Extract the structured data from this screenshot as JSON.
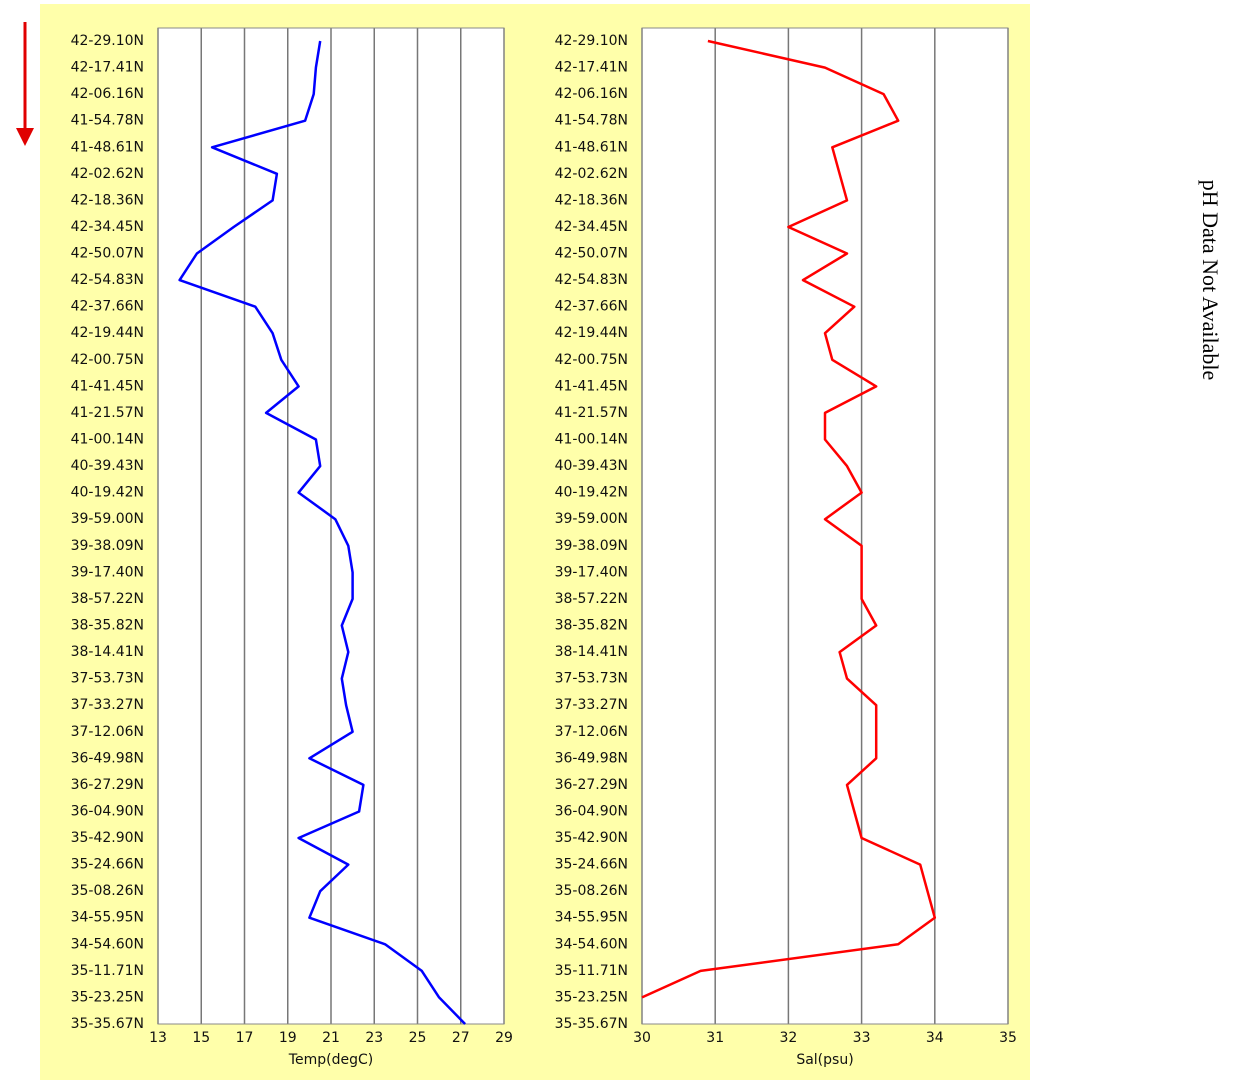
{
  "chart_data": [
    {
      "type": "line",
      "xlabel": "Temp(degC)",
      "categories": [
        "42-29.10N",
        "42-17.41N",
        "42-06.16N",
        "41-54.78N",
        "41-48.61N",
        "42-02.62N",
        "42-18.36N",
        "42-34.45N",
        "42-50.07N",
        "42-54.83N",
        "42-37.66N",
        "42-19.44N",
        "42-00.75N",
        "41-41.45N",
        "41-21.57N",
        "41-00.14N",
        "40-39.43N",
        "40-19.42N",
        "39-59.00N",
        "39-38.09N",
        "39-17.40N",
        "38-57.22N",
        "38-35.82N",
        "38-14.41N",
        "37-53.73N",
        "37-33.27N",
        "37-12.06N",
        "36-49.98N",
        "36-27.29N",
        "36-04.90N",
        "35-42.90N",
        "35-24.66N",
        "35-08.26N",
        "34-55.95N",
        "34-54.60N",
        "35-11.71N",
        "35-23.25N",
        "35-35.67N"
      ],
      "values": [
        20.5,
        20.3,
        20.2,
        19.8,
        15.5,
        18.5,
        18.3,
        16.5,
        14.8,
        14.0,
        17.5,
        18.3,
        18.7,
        19.5,
        18.0,
        20.3,
        20.5,
        19.5,
        21.2,
        21.8,
        22.0,
        22.0,
        21.5,
        21.8,
        21.5,
        21.7,
        22.0,
        20.0,
        22.5,
        22.3,
        19.5,
        21.8,
        20.5,
        20.0,
        23.5,
        25.2,
        26.0,
        27.2
      ],
      "color": "#0000ff",
      "xlim": [
        13,
        29
      ],
      "xticks": [
        13,
        15,
        17,
        19,
        21,
        23,
        25,
        27,
        29
      ],
      "grid": true
    },
    {
      "type": "line",
      "xlabel": "Sal(psu)",
      "categories": [
        "42-29.10N",
        "42-17.41N",
        "42-06.16N",
        "41-54.78N",
        "41-48.61N",
        "42-02.62N",
        "42-18.36N",
        "42-34.45N",
        "42-50.07N",
        "42-54.83N",
        "42-37.66N",
        "42-19.44N",
        "42-00.75N",
        "41-41.45N",
        "41-21.57N",
        "41-00.14N",
        "40-39.43N",
        "40-19.42N",
        "39-59.00N",
        "39-38.09N",
        "39-17.40N",
        "38-57.22N",
        "38-35.82N",
        "38-14.41N",
        "37-53.73N",
        "37-33.27N",
        "37-12.06N",
        "36-49.98N",
        "36-27.29N",
        "36-04.90N",
        "35-42.90N",
        "35-24.66N",
        "35-08.26N",
        "34-55.95N",
        "34-54.60N",
        "35-11.71N",
        "35-23.25N",
        "35-35.67N"
      ],
      "values": [
        30.9,
        32.5,
        33.3,
        33.5,
        32.6,
        32.7,
        32.8,
        32.0,
        32.8,
        32.2,
        32.9,
        32.5,
        32.6,
        33.2,
        32.5,
        32.5,
        32.8,
        33.0,
        32.5,
        33.0,
        33.0,
        33.0,
        33.2,
        32.7,
        32.8,
        33.2,
        33.2,
        33.2,
        32.8,
        32.9,
        33.0,
        33.8,
        33.9,
        34.0,
        33.5,
        30.8,
        30.0,
        null
      ],
      "color": "#ff0000",
      "xlim": [
        30,
        35
      ],
      "xticks": [
        30,
        31,
        32,
        33,
        34,
        35
      ],
      "grid": true
    }
  ],
  "note": "pH Data Not Available"
}
